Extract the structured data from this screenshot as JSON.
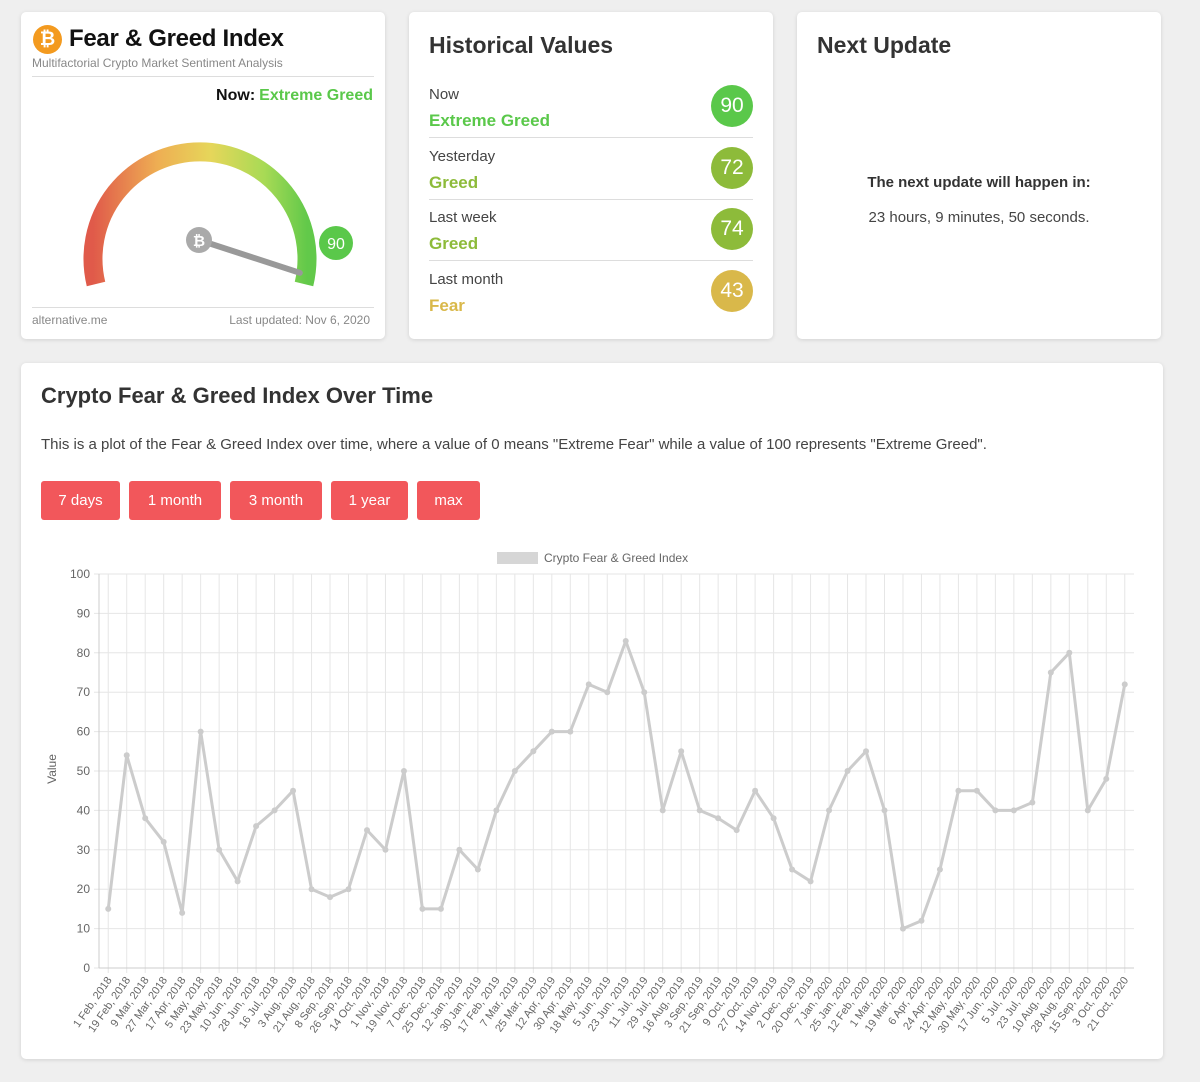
{
  "gauge_card": {
    "title": "Fear & Greed Index",
    "subtitle": "Multifactorial Crypto Market Sentiment Analysis",
    "logo_glyph": "₿",
    "now_label": "Now:",
    "now_value": "Extreme Greed",
    "value": 90,
    "value_text": "90",
    "footer_left": "alternative.me",
    "footer_right": "Last updated: Nov 6, 2020",
    "accent_color": "#5ac84a"
  },
  "historical": {
    "title": "Historical Values",
    "rows": [
      {
        "label": "Now",
        "classification": "Extreme Greed",
        "value": "90",
        "color": "#5ac84a"
      },
      {
        "label": "Yesterday",
        "classification": "Greed",
        "value": "72",
        "color": "#8dbb3a"
      },
      {
        "label": "Last week",
        "classification": "Greed",
        "value": "74",
        "color": "#8dbb3a"
      },
      {
        "label": "Last month",
        "classification": "Fear",
        "value": "43",
        "color": "#d9b84a"
      }
    ]
  },
  "next_update": {
    "title": "Next Update",
    "label": "The next update will happen in:",
    "time": "23 hours, 9 minutes, 50 seconds."
  },
  "chart_section": {
    "title": "Crypto Fear & Greed Index Over Time",
    "description": "This is a plot of the Fear & Greed Index over time, where a value of 0 means \"Extreme Fear\" while a value of 100 represents \"Extreme Greed\".",
    "buttons": [
      "7 days",
      "1 month",
      "3 month",
      "1 year",
      "max"
    ],
    "button_color": "#f2575b"
  },
  "chart_data": {
    "type": "line",
    "ylabel": "Value",
    "ylim": [
      0,
      100
    ],
    "yticks": [
      0,
      10,
      20,
      30,
      40,
      50,
      60,
      70,
      80,
      90,
      100
    ],
    "grid": true,
    "legend_position": "top",
    "line_color": "#cccccc",
    "x": [
      "1 Feb, 2018",
      "19 Feb, 2018",
      "9 Mar, 2018",
      "27 Mar, 2018",
      "17 Apr, 2018",
      "5 May, 2018",
      "23 May, 2018",
      "10 Jun, 2018",
      "28 Jun, 2018",
      "16 Jul, 2018",
      "3 Aug, 2018",
      "21 Aug, 2018",
      "8 Sep, 2018",
      "26 Sep, 2018",
      "14 Oct, 2018",
      "1 Nov, 2018",
      "19 Nov, 2018",
      "7 Dec, 2018",
      "25 Dec, 2018",
      "12 Jan, 2019",
      "30 Jan, 2019",
      "17 Feb, 2019",
      "7 Mar, 2019",
      "25 Mar, 2019",
      "12 Apr, 2019",
      "30 Apr, 2019",
      "18 May, 2019",
      "5 Jun, 2019",
      "23 Jun, 2019",
      "11 Jul, 2019",
      "29 Jul, 2019",
      "16 Aug, 2019",
      "3 Sep, 2019",
      "21 Sep, 2019",
      "9 Oct, 2019",
      "27 Oct, 2019",
      "14 Nov, 2019",
      "2 Dec, 2019",
      "20 Dec, 2019",
      "7 Jan, 2020",
      "25 Jan, 2020",
      "12 Feb, 2020",
      "1 Mar, 2020",
      "19 Mar, 2020",
      "6 Apr, 2020",
      "24 Apr, 2020",
      "12 May, 2020",
      "30 May, 2020",
      "17 Jun, 2020",
      "5 Jul, 2020",
      "23 Jul, 2020",
      "10 Aug, 2020",
      "28 Aug, 2020",
      "15 Sep, 2020",
      "3 Oct, 2020",
      "21 Oct, 2020"
    ],
    "series": [
      {
        "name": "Crypto Fear & Greed Index",
        "values": [
          15,
          54,
          38,
          32,
          14,
          60,
          30,
          22,
          36,
          40,
          45,
          20,
          18,
          20,
          35,
          30,
          50,
          15,
          15,
          30,
          25,
          40,
          50,
          55,
          60,
          60,
          72,
          70,
          83,
          70,
          40,
          55,
          40,
          38,
          35,
          45,
          38,
          25,
          22,
          40,
          50,
          55,
          40,
          10,
          12,
          25,
          45,
          45,
          40,
          40,
          42,
          75,
          80,
          40,
          48,
          72
        ]
      }
    ]
  }
}
